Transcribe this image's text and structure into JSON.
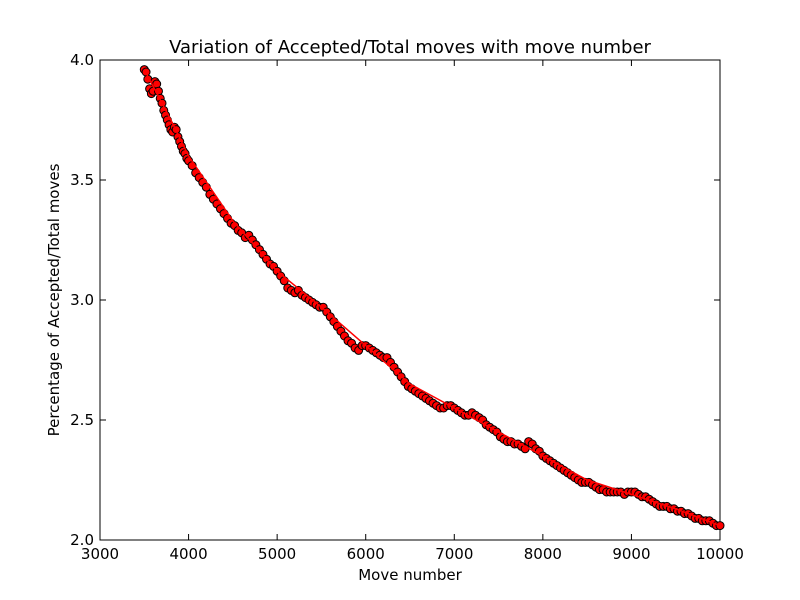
{
  "chart_data": {
    "type": "scatter",
    "title": "Variation of Accepted/Total moves with move number",
    "xlabel": "Move number",
    "ylabel": "Percentage of Accepted/Total moves",
    "xlim": [
      3000,
      10000
    ],
    "ylim": [
      2.0,
      4.0
    ],
    "xticks": [
      3000,
      4000,
      5000,
      6000,
      7000,
      8000,
      9000,
      10000
    ],
    "yticks": [
      2.0,
      2.5,
      3.0,
      3.5,
      4.0
    ],
    "xtick_labels": [
      "3000",
      "4000",
      "5000",
      "6000",
      "7000",
      "8000",
      "9000",
      "10000"
    ],
    "ytick_labels": [
      "2.0",
      "2.5",
      "3.0",
      "3.5",
      "4.0"
    ],
    "grid": false,
    "marker_face_color": "#ff0000",
    "marker_edge_color": "#000000",
    "fit_line_color": "#ff0000",
    "points": [
      [
        3500,
        3.96
      ],
      [
        3520,
        3.95
      ],
      [
        3540,
        3.92
      ],
      [
        3560,
        3.88
      ],
      [
        3580,
        3.86
      ],
      [
        3600,
        3.87
      ],
      [
        3620,
        3.91
      ],
      [
        3640,
        3.9
      ],
      [
        3660,
        3.87
      ],
      [
        3680,
        3.84
      ],
      [
        3700,
        3.82
      ],
      [
        3720,
        3.79
      ],
      [
        3740,
        3.77
      ],
      [
        3760,
        3.75
      ],
      [
        3780,
        3.73
      ],
      [
        3800,
        3.71
      ],
      [
        3820,
        3.7
      ],
      [
        3840,
        3.72
      ],
      [
        3860,
        3.71
      ],
      [
        3880,
        3.68
      ],
      [
        3900,
        3.66
      ],
      [
        3920,
        3.64
      ],
      [
        3940,
        3.62
      ],
      [
        3960,
        3.61
      ],
      [
        3980,
        3.59
      ],
      [
        4000,
        3.58
      ],
      [
        4040,
        3.56
      ],
      [
        4080,
        3.53
      ],
      [
        4120,
        3.51
      ],
      [
        4160,
        3.49
      ],
      [
        4200,
        3.47
      ],
      [
        4240,
        3.44
      ],
      [
        4280,
        3.42
      ],
      [
        4320,
        3.4
      ],
      [
        4360,
        3.38
      ],
      [
        4400,
        3.36
      ],
      [
        4440,
        3.34
      ],
      [
        4480,
        3.32
      ],
      [
        4520,
        3.31
      ],
      [
        4560,
        3.29
      ],
      [
        4600,
        3.28
      ],
      [
        4640,
        3.26
      ],
      [
        4680,
        3.27
      ],
      [
        4720,
        3.25
      ],
      [
        4760,
        3.23
      ],
      [
        4800,
        3.21
      ],
      [
        4840,
        3.19
      ],
      [
        4880,
        3.17
      ],
      [
        4920,
        3.15
      ],
      [
        4960,
        3.14
      ],
      [
        5000,
        3.12
      ],
      [
        5040,
        3.1
      ],
      [
        5080,
        3.08
      ],
      [
        5120,
        3.05
      ],
      [
        5160,
        3.04
      ],
      [
        5200,
        3.03
      ],
      [
        5240,
        3.04
      ],
      [
        5280,
        3.02
      ],
      [
        5320,
        3.01
      ],
      [
        5360,
        3.0
      ],
      [
        5400,
        2.99
      ],
      [
        5440,
        2.98
      ],
      [
        5480,
        2.97
      ],
      [
        5520,
        2.97
      ],
      [
        5560,
        2.95
      ],
      [
        5600,
        2.93
      ],
      [
        5640,
        2.91
      ],
      [
        5680,
        2.89
      ],
      [
        5720,
        2.87
      ],
      [
        5760,
        2.85
      ],
      [
        5800,
        2.83
      ],
      [
        5840,
        2.82
      ],
      [
        5880,
        2.8
      ],
      [
        5920,
        2.79
      ],
      [
        5960,
        2.81
      ],
      [
        6000,
        2.81
      ],
      [
        6040,
        2.8
      ],
      [
        6080,
        2.79
      ],
      [
        6120,
        2.78
      ],
      [
        6160,
        2.77
      ],
      [
        6200,
        2.76
      ],
      [
        6240,
        2.76
      ],
      [
        6280,
        2.74
      ],
      [
        6320,
        2.72
      ],
      [
        6360,
        2.7
      ],
      [
        6400,
        2.68
      ],
      [
        6440,
        2.66
      ],
      [
        6480,
        2.64
      ],
      [
        6520,
        2.63
      ],
      [
        6560,
        2.62
      ],
      [
        6600,
        2.61
      ],
      [
        6640,
        2.6
      ],
      [
        6680,
        2.59
      ],
      [
        6720,
        2.58
      ],
      [
        6760,
        2.57
      ],
      [
        6800,
        2.56
      ],
      [
        6840,
        2.55
      ],
      [
        6880,
        2.55
      ],
      [
        6920,
        2.56
      ],
      [
        6960,
        2.56
      ],
      [
        7000,
        2.55
      ],
      [
        7040,
        2.54
      ],
      [
        7080,
        2.53
      ],
      [
        7120,
        2.52
      ],
      [
        7160,
        2.52
      ],
      [
        7200,
        2.53
      ],
      [
        7240,
        2.52
      ],
      [
        7280,
        2.51
      ],
      [
        7320,
        2.5
      ],
      [
        7360,
        2.48
      ],
      [
        7400,
        2.47
      ],
      [
        7440,
        2.46
      ],
      [
        7480,
        2.45
      ],
      [
        7520,
        2.43
      ],
      [
        7560,
        2.42
      ],
      [
        7600,
        2.41
      ],
      [
        7640,
        2.41
      ],
      [
        7680,
        2.4
      ],
      [
        7720,
        2.4
      ],
      [
        7760,
        2.39
      ],
      [
        7800,
        2.38
      ],
      [
        7840,
        2.41
      ],
      [
        7880,
        2.4
      ],
      [
        7920,
        2.38
      ],
      [
        7960,
        2.37
      ],
      [
        8000,
        2.35
      ],
      [
        8040,
        2.34
      ],
      [
        8080,
        2.33
      ],
      [
        8120,
        2.32
      ],
      [
        8160,
        2.31
      ],
      [
        8200,
        2.3
      ],
      [
        8240,
        2.29
      ],
      [
        8280,
        2.28
      ],
      [
        8320,
        2.27
      ],
      [
        8360,
        2.26
      ],
      [
        8400,
        2.25
      ],
      [
        8440,
        2.24
      ],
      [
        8480,
        2.24
      ],
      [
        8520,
        2.24
      ],
      [
        8560,
        2.23
      ],
      [
        8600,
        2.22
      ],
      [
        8640,
        2.21
      ],
      [
        8680,
        2.21
      ],
      [
        8720,
        2.2
      ],
      [
        8760,
        2.2
      ],
      [
        8800,
        2.2
      ],
      [
        8840,
        2.2
      ],
      [
        8880,
        2.2
      ],
      [
        8920,
        2.19
      ],
      [
        8960,
        2.2
      ],
      [
        9000,
        2.2
      ],
      [
        9040,
        2.2
      ],
      [
        9080,
        2.19
      ],
      [
        9120,
        2.18
      ],
      [
        9160,
        2.18
      ],
      [
        9200,
        2.17
      ],
      [
        9240,
        2.16
      ],
      [
        9280,
        2.15
      ],
      [
        9320,
        2.14
      ],
      [
        9360,
        2.14
      ],
      [
        9400,
        2.14
      ],
      [
        9440,
        2.13
      ],
      [
        9480,
        2.13
      ],
      [
        9520,
        2.12
      ],
      [
        9560,
        2.12
      ],
      [
        9600,
        2.11
      ],
      [
        9640,
        2.11
      ],
      [
        9680,
        2.1
      ],
      [
        9720,
        2.09
      ],
      [
        9760,
        2.09
      ],
      [
        9800,
        2.08
      ],
      [
        9840,
        2.08
      ],
      [
        9880,
        2.08
      ],
      [
        9920,
        2.07
      ],
      [
        9960,
        2.06
      ],
      [
        10000,
        2.06
      ]
    ],
    "fit_line": [
      [
        3500,
        3.96
      ],
      [
        3800,
        3.75
      ],
      [
        4000,
        3.6
      ],
      [
        4500,
        3.33
      ],
      [
        5000,
        3.12
      ],
      [
        5500,
        2.97
      ],
      [
        6000,
        2.81
      ],
      [
        6500,
        2.65
      ],
      [
        7000,
        2.55
      ],
      [
        7500,
        2.45
      ],
      [
        8000,
        2.35
      ],
      [
        8500,
        2.25
      ],
      [
        9000,
        2.19
      ],
      [
        9500,
        2.13
      ],
      [
        10000,
        2.06
      ]
    ]
  }
}
